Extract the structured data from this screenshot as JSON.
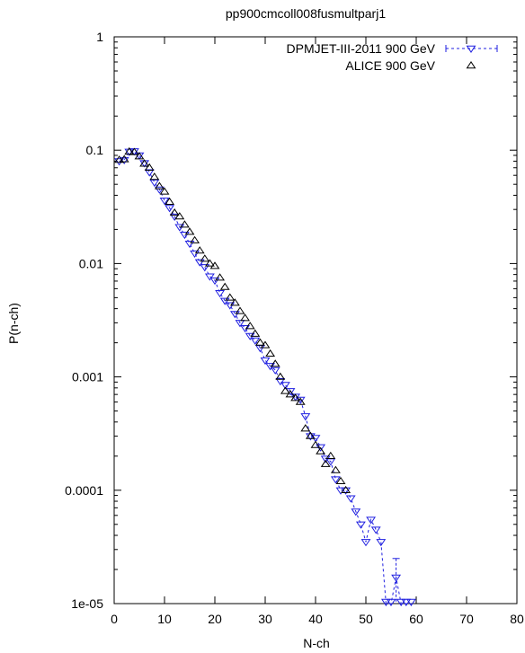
{
  "chart_data": {
    "type": "scatter",
    "title": "pp900cmcoll008fusmultparj1",
    "xlabel": "N-ch",
    "ylabel": "P(n-ch)",
    "xlim": [
      0,
      80
    ],
    "ylim": [
      1e-05,
      1
    ],
    "yscale": "log",
    "x_ticks": [
      "0",
      "10",
      "20",
      "30",
      "40",
      "50",
      "60",
      "70",
      "80"
    ],
    "y_ticks": [
      "1e-05",
      "0.0001",
      "0.001",
      "0.01",
      "0.1",
      "1"
    ],
    "grid": false,
    "legend_position": "top-right",
    "colors": {
      "dpmjet": "#1f1fe0",
      "alice": "#000000",
      "axes": "#000000"
    },
    "series": [
      {
        "name": "DPMJET-III-2011  900 GeV",
        "marker": "triangle-down",
        "x": [
          1,
          2,
          3,
          4,
          5,
          6,
          7,
          8,
          9,
          10,
          11,
          12,
          13,
          14,
          15,
          16,
          17,
          18,
          19,
          20,
          21,
          22,
          23,
          24,
          25,
          26,
          27,
          28,
          29,
          30,
          31,
          32,
          33,
          34,
          35,
          36,
          37,
          38,
          39,
          40,
          41,
          42,
          43,
          44,
          45,
          46,
          47,
          48,
          49,
          50,
          51,
          52,
          53,
          54,
          55,
          56,
          57,
          58,
          59
        ],
        "values": [
          0.08,
          0.082,
          0.097,
          0.098,
          0.09,
          0.077,
          0.064,
          0.052,
          0.045,
          0.036,
          0.031,
          0.026,
          0.021,
          0.018,
          0.015,
          0.0123,
          0.0103,
          0.0093,
          0.0077,
          0.0071,
          0.0055,
          0.0047,
          0.0043,
          0.0036,
          0.003,
          0.0027,
          0.0023,
          0.0021,
          0.0018,
          0.0014,
          0.00125,
          0.00115,
          0.00092,
          0.00085,
          0.00075,
          0.00067,
          0.00063,
          0.00045,
          0.0003,
          0.00029,
          0.00024,
          0.00019,
          0.00018,
          0.000125,
          0.0001,
          0.0001,
          8.5e-05,
          6.5e-05,
          5e-05,
          3.5e-05,
          5.5e-05,
          4.5e-05,
          3.5e-05,
          1e-05,
          1e-05,
          1.7e-05,
          1e-05,
          1e-05,
          1e-05
        ],
        "errors": [
          0,
          0,
          0,
          0,
          0,
          0,
          0,
          0,
          0,
          0,
          0,
          0,
          0,
          0,
          0,
          0,
          0,
          0,
          0,
          0,
          0,
          0,
          0,
          0,
          0,
          0,
          0,
          0,
          0,
          0,
          0,
          0,
          0,
          0,
          0,
          0,
          0,
          0,
          0,
          0,
          0,
          0,
          0,
          0,
          0,
          0,
          0,
          0,
          0,
          0,
          0,
          0,
          0,
          0,
          0,
          8e-06,
          0,
          0,
          0
        ]
      },
      {
        "name": "ALICE  900 GeV",
        "marker": "triangle-up",
        "x": [
          1,
          2,
          3,
          4,
          5,
          6,
          7,
          8,
          9,
          10,
          11,
          12,
          13,
          14,
          15,
          16,
          17,
          18,
          19,
          20,
          21,
          22,
          23,
          24,
          25,
          26,
          27,
          28,
          29,
          30,
          31,
          32,
          33,
          34,
          35,
          36,
          37,
          38,
          39,
          40,
          41,
          42,
          43,
          44,
          45,
          46
        ],
        "values": [
          0.082,
          0.083,
          0.097,
          0.096,
          0.088,
          0.076,
          0.07,
          0.058,
          0.048,
          0.043,
          0.035,
          0.028,
          0.026,
          0.022,
          0.019,
          0.016,
          0.013,
          0.011,
          0.01,
          0.0095,
          0.0075,
          0.0062,
          0.005,
          0.0045,
          0.0038,
          0.0033,
          0.0028,
          0.0024,
          0.002,
          0.0019,
          0.0016,
          0.0013,
          0.001,
          0.00075,
          0.0007,
          0.00065,
          0.0006,
          0.00035,
          0.0003,
          0.00025,
          0.00022,
          0.00017,
          0.0002,
          0.00015,
          0.00012,
          0.0001
        ]
      }
    ]
  }
}
